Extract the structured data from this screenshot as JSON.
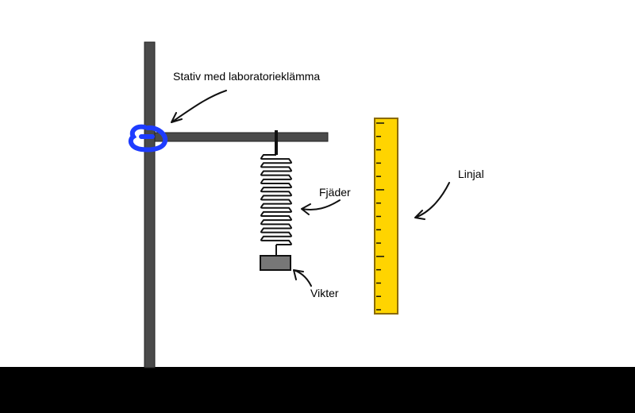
{
  "labels": {
    "stand": "Stativ med laboratorieklämma",
    "spring": "Fjäder",
    "weights": "Vikter",
    "ruler": "Linjal"
  },
  "colors": {
    "rod": "#4a4a4a",
    "clamp": "#1e3cff",
    "ruler_fill": "#ffd400",
    "ruler_border": "#8a6a00",
    "weight": "#777777",
    "floor": "#000000"
  }
}
